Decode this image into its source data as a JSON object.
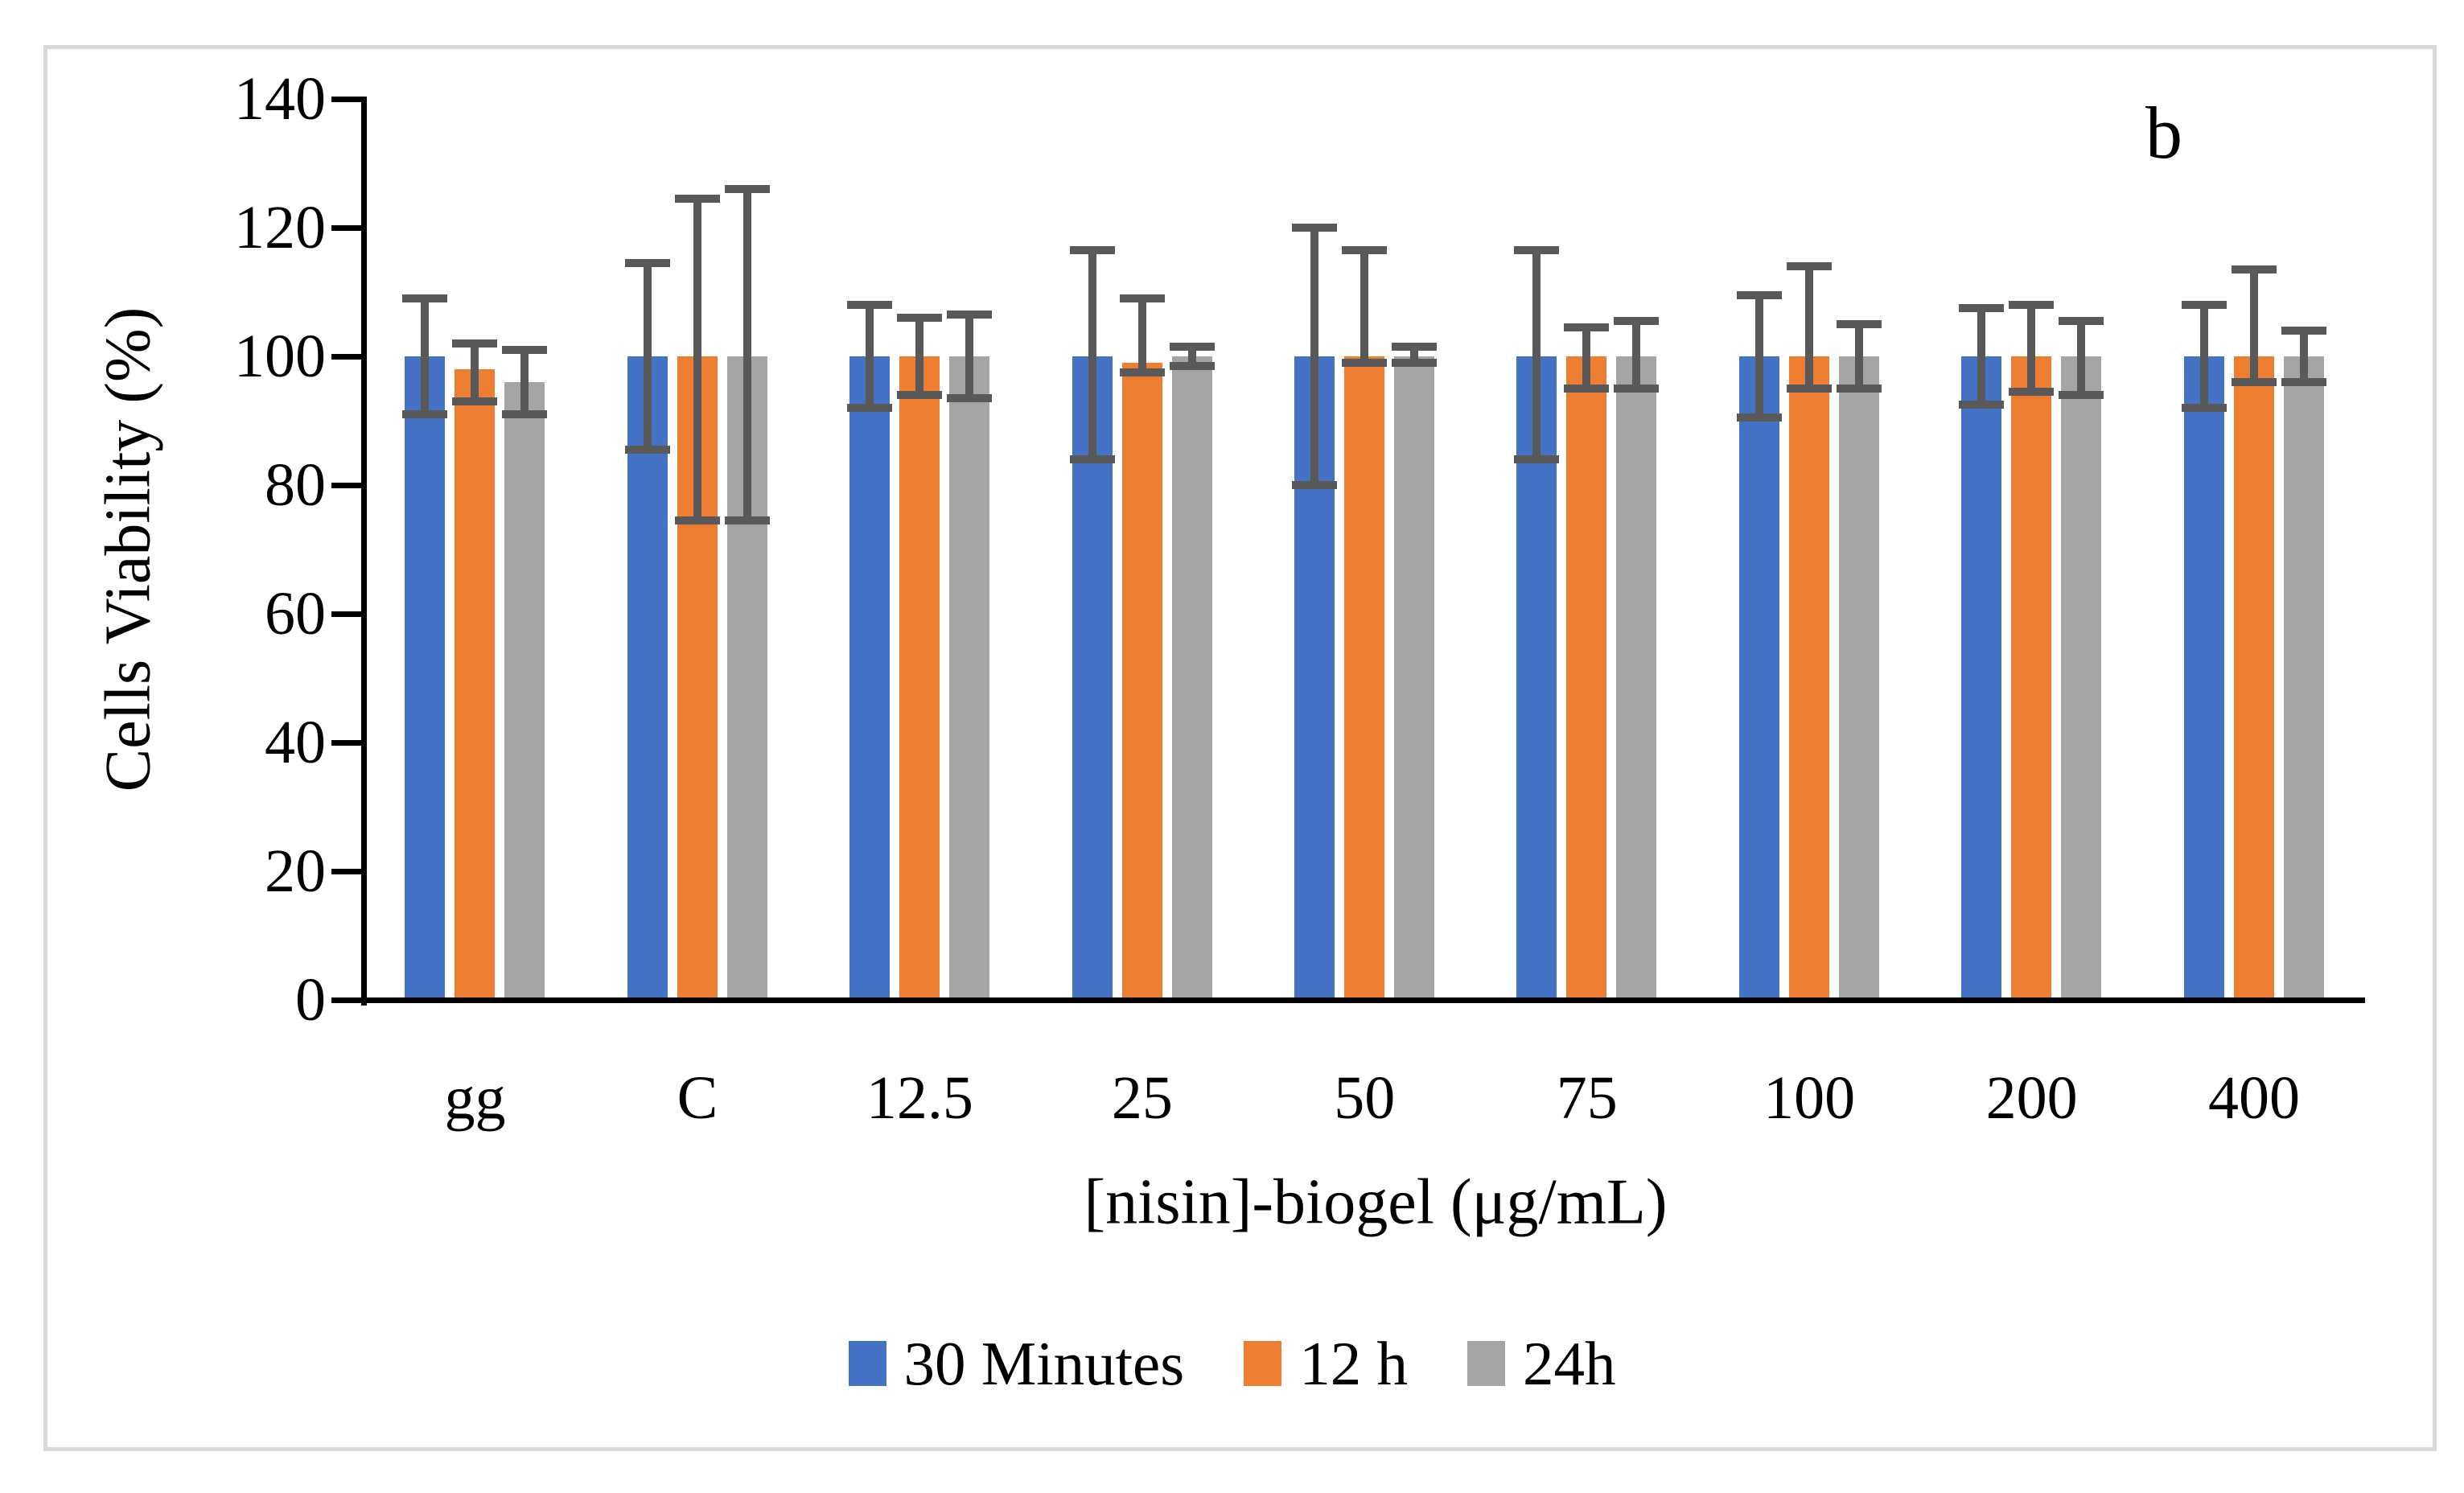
{
  "figure": {
    "panel_label": "b",
    "border_color": "#d9d9d9",
    "background": "#ffffff"
  },
  "chart_data": {
    "type": "bar",
    "title": "",
    "xlabel": "[nisin]-biogel (μg/mL)",
    "ylabel": "Cells Viability (%)",
    "categories": [
      "gg",
      "C",
      "12.5",
      "25",
      "50",
      "75",
      "100",
      "200",
      "400"
    ],
    "y_ticks": [
      0,
      20,
      40,
      60,
      80,
      100,
      120,
      140
    ],
    "ylim": [
      0,
      140
    ],
    "grid": false,
    "legend_position": "bottom-center",
    "error_bar_color": "#595959",
    "axis_color": "#000000",
    "series": [
      {
        "name": "30 Minutes",
        "color": "#4472C4",
        "values": [
          100,
          100,
          100,
          100,
          100,
          100,
          100,
          100,
          100
        ],
        "err_up": [
          9,
          14.5,
          8,
          16.5,
          20,
          16.5,
          9.5,
          7.5,
          8
        ],
        "err_down": [
          9,
          14.5,
          8,
          16,
          20,
          16,
          9.5,
          7.5,
          8
        ]
      },
      {
        "name": "12 h",
        "color": "#ED7D31",
        "values": [
          98,
          100,
          100,
          99,
          100,
          100,
          100,
          100,
          100
        ],
        "err_up": [
          4,
          24.5,
          6,
          10,
          16.5,
          4.5,
          14,
          8,
          13.5
        ],
        "err_down": [
          5,
          25.5,
          6,
          1.5,
          1,
          5,
          5,
          5.5,
          4
        ]
      },
      {
        "name": "24h",
        "color": "#A5A5A5",
        "values": [
          96,
          100,
          100,
          100,
          100,
          100,
          100,
          100,
          100
        ],
        "err_up": [
          5,
          26,
          6.5,
          1.5,
          1.5,
          5.5,
          5,
          5.5,
          4
        ],
        "err_down": [
          5,
          25.5,
          6.5,
          1.5,
          1,
          5,
          5,
          6,
          4
        ]
      }
    ]
  }
}
